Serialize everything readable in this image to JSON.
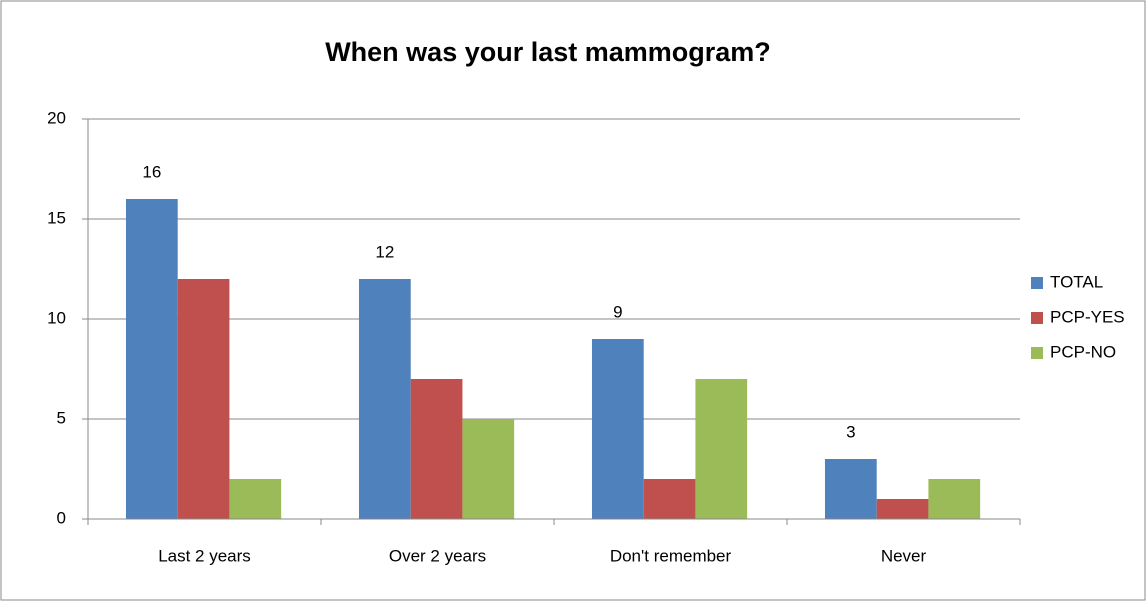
{
  "chart_data": {
    "type": "bar",
    "title": "When was your last mammogram?",
    "categories": [
      "Last 2 years",
      "Over 2 years",
      "Don't remember",
      "Never"
    ],
    "series": [
      {
        "name": "TOTAL",
        "color": "#4f81bd",
        "values": [
          16,
          12,
          9,
          3
        ]
      },
      {
        "name": "PCP-YES",
        "color": "#c0504d",
        "values": [
          12,
          7,
          2,
          1
        ]
      },
      {
        "name": "PCP-NO",
        "color": "#9bbb59",
        "values": [
          2,
          5,
          7,
          2
        ]
      }
    ],
    "ylim": [
      0,
      20
    ],
    "yticks": [
      0,
      5,
      10,
      15,
      20
    ],
    "grid": true,
    "legend": "right"
  }
}
